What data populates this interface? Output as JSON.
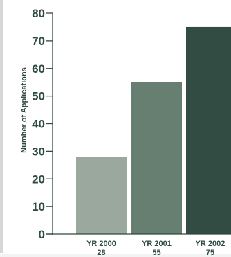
{
  "chart_data": {
    "type": "bar",
    "title": "",
    "xlabel": "",
    "ylabel": "Number of Applications",
    "ylim": [
      0,
      80
    ],
    "yticks": [
      0,
      10,
      20,
      30,
      40,
      50,
      60,
      70,
      80
    ],
    "grid": false,
    "categories": [
      "YR 2000",
      "YR 2001",
      "YR 2002"
    ],
    "values": [
      28,
      55,
      75
    ],
    "value_labels": [
      "28",
      "55",
      "75"
    ],
    "colors": [
      "#9aa89d",
      "#677f71",
      "#334c43"
    ],
    "axis_color": "#2f4a40"
  }
}
